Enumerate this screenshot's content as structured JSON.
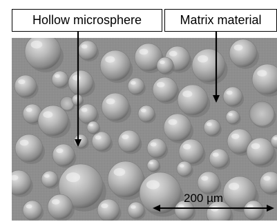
{
  "labels": {
    "hollow_microsphere": "Hollow microsphere",
    "matrix_material": "Matrix material"
  },
  "scale_bar": {
    "text": "200 µm"
  },
  "colors": {
    "background": "#8e8e8e",
    "sphere_light": "#d8d8d8",
    "sphere_mid": "#a9a9a9",
    "sphere_dark": "#6c6c6c",
    "annotation": "#000000"
  },
  "image": {
    "type": "SEM micrograph",
    "subject": "spherical microspheres embedded in matrix"
  }
}
